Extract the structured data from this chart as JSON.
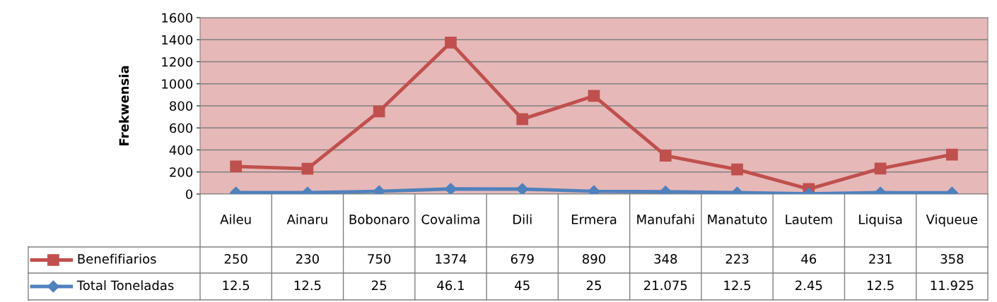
{
  "chart_data": {
    "type": "line",
    "ylabel": "Frekwensia",
    "categories": [
      "Aileu",
      "Ainaru",
      "Bobonaro",
      "Covalima",
      "Dili",
      "Ermera",
      "Manufahi",
      "Manatuto",
      "Lautem",
      "Liquisa",
      "Viqueue"
    ],
    "series": [
      {
        "name": "Benefifiarios",
        "color": "#c0504d",
        "marker": "square",
        "values": [
          250,
          230,
          750,
          1374,
          679,
          890,
          348,
          223,
          46,
          231,
          358
        ]
      },
      {
        "name": "Total Toneladas",
        "color": "#4f81bd",
        "marker": "diamond",
        "values": [
          12.5,
          12.5,
          25,
          46.1,
          45,
          25,
          21.075,
          12.5,
          2.45,
          12.5,
          11.925
        ]
      }
    ],
    "ylim": [
      0,
      1600
    ],
    "yticks": [
      0,
      200,
      400,
      600,
      800,
      1000,
      1200,
      1400,
      1600
    ],
    "grid": "y",
    "data_labels": true,
    "legend": "bottom"
  }
}
